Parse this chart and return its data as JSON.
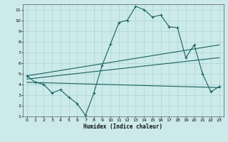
{
  "xlabel": "Humidex (Indice chaleur)",
  "bg_color": "#cceaea",
  "grid_color": "#aad4d4",
  "line_color": "#1a6060",
  "xlim": [
    -0.5,
    23.5
  ],
  "ylim": [
    1,
    11.5
  ],
  "xticks": [
    0,
    1,
    2,
    3,
    4,
    5,
    6,
    7,
    8,
    9,
    10,
    11,
    12,
    13,
    14,
    15,
    16,
    17,
    18,
    19,
    20,
    21,
    22,
    23
  ],
  "yticks": [
    1,
    2,
    3,
    4,
    5,
    6,
    7,
    8,
    9,
    10,
    11
  ],
  "curve_x": [
    0,
    1,
    2,
    3,
    4,
    5,
    6,
    7,
    8,
    9,
    10,
    11,
    12,
    13,
    14,
    15,
    16,
    17,
    18,
    19,
    20,
    21,
    22,
    23
  ],
  "curve_y": [
    4.8,
    4.2,
    4.0,
    3.2,
    3.5,
    2.8,
    2.2,
    1.1,
    3.2,
    5.8,
    7.8,
    9.8,
    10.0,
    11.3,
    11.0,
    10.3,
    10.5,
    9.4,
    9.3,
    6.5,
    7.7,
    5.0,
    3.3,
    3.8
  ],
  "trend1_x": [
    0,
    23
  ],
  "trend1_y": [
    4.8,
    7.7
  ],
  "trend2_x": [
    0,
    23
  ],
  "trend2_y": [
    4.5,
    6.5
  ],
  "trend3_x": [
    0,
    23
  ],
  "trend3_y": [
    4.2,
    3.7
  ]
}
